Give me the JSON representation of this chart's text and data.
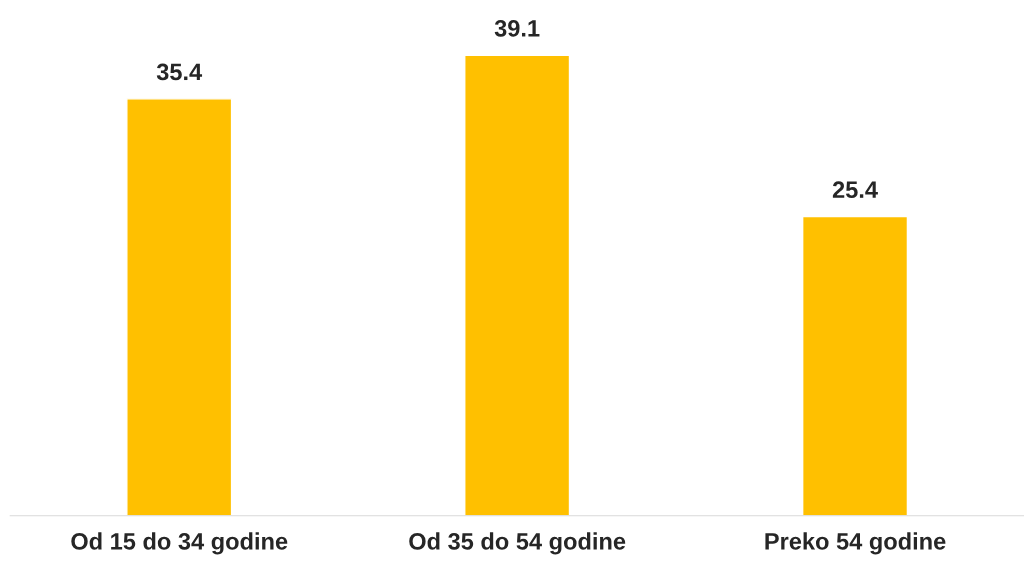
{
  "chart_data": {
    "type": "bar",
    "categories": [
      "Od 15 do 34 godine",
      "Od 35 do 54 godine",
      "Preko 54 godine"
    ],
    "values": [
      35.4,
      39.1,
      25.4
    ],
    "color": "#ffc000",
    "data_labels": true,
    "grid": false,
    "legend": false,
    "tick_labels": "x"
  }
}
